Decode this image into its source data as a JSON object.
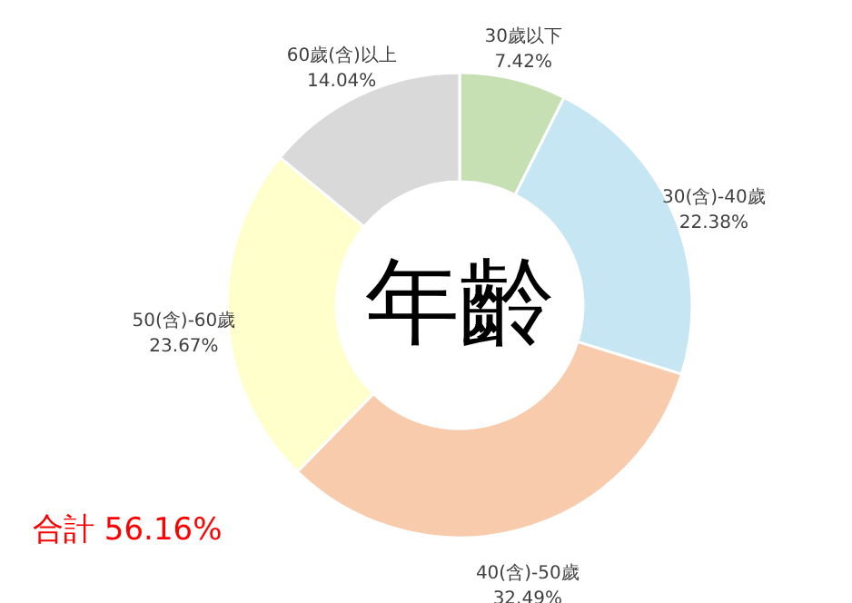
{
  "chart_data": {
    "type": "donut",
    "title": "年齡",
    "categories": [
      "30歲以下",
      "30(含)-40歲",
      "40(含)-50歲",
      "50(含)-60歲",
      "60歲(含)以上"
    ],
    "values": [
      7.42,
      22.38,
      32.49,
      23.67,
      14.04
    ],
    "value_labels": [
      "7.42%",
      "22.38%",
      "32.49%",
      "23.67%",
      "14.04%"
    ],
    "colors": [
      "#c6e0b4",
      "#c5e6f2",
      "#f8cbad",
      "#ffffcc",
      "#d9d9d9"
    ],
    "annotations": [
      "合計 56.16%"
    ]
  }
}
